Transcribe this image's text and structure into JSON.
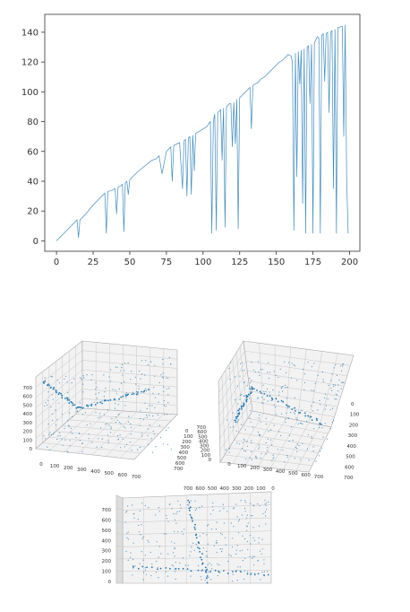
{
  "colors": {
    "series": "#1f77b4",
    "axis": "#333333",
    "grid": "#c8c8c8",
    "pane": "#f2f2f2"
  },
  "chart_data": [
    {
      "type": "line",
      "title": "",
      "xlabel": "",
      "ylabel": "",
      "xlim": [
        -8,
        207
      ],
      "ylim": [
        -7,
        152
      ],
      "xticks": [
        0,
        25,
        50,
        75,
        100,
        125,
        150,
        175,
        200
      ],
      "yticks": [
        0,
        20,
        40,
        60,
        80,
        100,
        120,
        140
      ],
      "grid": false,
      "series": [
        {
          "x": [
            0,
            5,
            8,
            12,
            14,
            15,
            16,
            20,
            25,
            30,
            33,
            34,
            35,
            38,
            40,
            41,
            42,
            44,
            45,
            46,
            47,
            48,
            49,
            50,
            55,
            60,
            65,
            68,
            70,
            72,
            75,
            77,
            78,
            79,
            80,
            82,
            84,
            86,
            87,
            88,
            89,
            90,
            91,
            92,
            93,
            94,
            95,
            100,
            103,
            104,
            105,
            106,
            107,
            108,
            109,
            110,
            112,
            113,
            114,
            115,
            116,
            118,
            119,
            120,
            121,
            122,
            123,
            124,
            125,
            126,
            128,
            130,
            131,
            132,
            133,
            134,
            135,
            137,
            139,
            140,
            142,
            144,
            146,
            148,
            150,
            152,
            154,
            155,
            158,
            160,
            161,
            162,
            163,
            164,
            165,
            166,
            167,
            168,
            169,
            170,
            171,
            172,
            173,
            174,
            175,
            176,
            177,
            178,
            179,
            180,
            181,
            182,
            183,
            184,
            185,
            186,
            187,
            188,
            189,
            190,
            191,
            192,
            193,
            194,
            195,
            196,
            197,
            198,
            199
          ],
          "y": [
            0,
            5,
            8,
            12,
            14,
            2,
            14,
            18,
            24,
            29,
            32,
            5,
            33,
            34,
            35,
            18,
            36,
            37,
            38,
            6,
            39,
            40,
            31,
            41,
            46,
            50,
            54,
            55,
            57,
            45,
            60,
            62,
            63,
            40,
            64,
            65,
            66,
            35,
            67,
            68,
            30,
            69,
            70,
            31,
            71,
            47,
            72,
            75,
            77,
            79,
            80,
            5,
            80,
            85,
            7,
            86,
            88,
            54,
            89,
            9,
            90,
            92,
            92,
            63,
            93,
            65,
            95,
            8,
            96,
            97,
            99,
            101,
            102,
            103,
            75,
            104,
            105,
            106,
            108,
            109,
            110,
            112,
            114,
            116,
            118,
            120,
            121,
            122,
            125,
            124,
            120,
            7,
            126,
            43,
            127,
            105,
            128,
            25,
            129,
            5,
            130,
            131,
            92,
            132,
            5,
            133,
            135,
            137,
            136,
            5,
            138,
            139,
            107,
            139,
            140,
            86,
            140,
            141,
            35,
            142,
            5,
            143,
            143,
            144,
            144,
            70,
            145,
            40,
            5
          ]
        }
      ]
    },
    {
      "type": "scatter",
      "title": "",
      "xlabel": "",
      "ylabel": "",
      "zlabel": "",
      "xticks": [
        0,
        100,
        200,
        300,
        400,
        500,
        600,
        700
      ],
      "yticks": [
        0,
        100,
        200,
        300,
        400,
        500,
        600,
        700
      ],
      "zticks": [
        0,
        100,
        200,
        300,
        400,
        500,
        600,
        700
      ],
      "grid": true,
      "views": [
        {
          "xticks_shown": [
            0,
            100,
            200,
            300,
            400,
            500,
            600,
            700
          ],
          "yticks_shown": [
            0,
            100,
            200,
            300,
            400,
            500,
            600,
            700
          ],
          "zticks_shown": [
            0,
            100,
            200,
            300,
            400,
            500,
            600,
            700
          ]
        },
        {
          "xticks_shown": [
            0,
            100,
            200,
            300,
            400,
            500,
            600,
            700
          ],
          "yticks_shown": [
            0,
            100,
            200,
            300,
            400,
            500,
            600,
            700
          ],
          "zticks_shown": [
            0,
            100,
            200,
            300,
            400,
            500,
            600,
            700
          ]
        },
        {
          "xticks_shown": [
            700,
            600,
            500,
            400,
            300,
            200,
            100,
            0
          ],
          "zticks_shown": [
            0,
            100,
            200,
            300,
            400,
            500,
            600,
            700
          ]
        }
      ]
    }
  ]
}
